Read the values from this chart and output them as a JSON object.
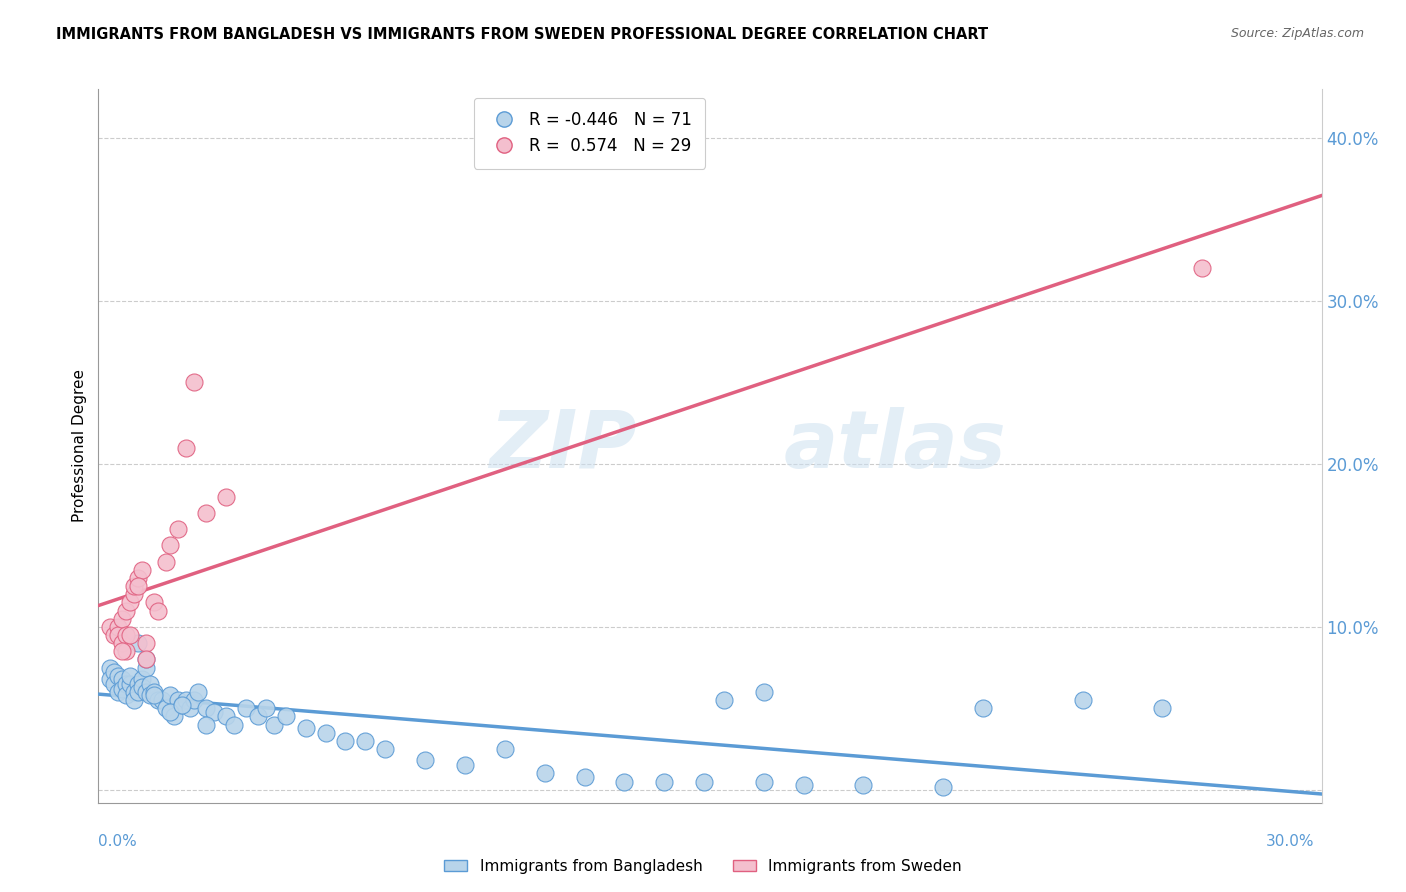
{
  "title": "IMMIGRANTS FROM BANGLADESH VS IMMIGRANTS FROM SWEDEN PROFESSIONAL DEGREE CORRELATION CHART",
  "source": "Source: ZipAtlas.com",
  "ylabel": "Professional Degree",
  "ytick_vals": [
    0.0,
    0.1,
    0.2,
    0.3,
    0.4
  ],
  "ytick_labels": [
    "",
    "10.0%",
    "20.0%",
    "30.0%",
    "40.0%"
  ],
  "xlim": [
    -0.002,
    0.305
  ],
  "ylim": [
    -0.008,
    0.43
  ],
  "color_bangladesh": "#b8d4ea",
  "color_sweden": "#f4bfce",
  "color_line_bangladesh": "#5b9bd5",
  "color_line_sweden": "#e06080",
  "color_axis_text": "#5b9bd5",
  "bangladesh_x": [
    0.001,
    0.001,
    0.002,
    0.002,
    0.003,
    0.003,
    0.004,
    0.004,
    0.005,
    0.005,
    0.006,
    0.006,
    0.007,
    0.007,
    0.008,
    0.008,
    0.009,
    0.009,
    0.01,
    0.01,
    0.011,
    0.011,
    0.012,
    0.013,
    0.014,
    0.015,
    0.016,
    0.017,
    0.018,
    0.019,
    0.02,
    0.021,
    0.022,
    0.023,
    0.025,
    0.027,
    0.03,
    0.032,
    0.035,
    0.038,
    0.04,
    0.042,
    0.045,
    0.05,
    0.055,
    0.06,
    0.065,
    0.07,
    0.08,
    0.09,
    0.1,
    0.11,
    0.12,
    0.13,
    0.14,
    0.15,
    0.165,
    0.175,
    0.19,
    0.21,
    0.155,
    0.165,
    0.22,
    0.245,
    0.265,
    0.008,
    0.01,
    0.012,
    0.016,
    0.019,
    0.025
  ],
  "bangladesh_y": [
    0.075,
    0.068,
    0.072,
    0.065,
    0.07,
    0.06,
    0.068,
    0.062,
    0.065,
    0.058,
    0.065,
    0.07,
    0.06,
    0.055,
    0.065,
    0.06,
    0.068,
    0.063,
    0.075,
    0.06,
    0.065,
    0.058,
    0.06,
    0.055,
    0.055,
    0.05,
    0.058,
    0.045,
    0.055,
    0.052,
    0.055,
    0.05,
    0.055,
    0.06,
    0.05,
    0.048,
    0.045,
    0.04,
    0.05,
    0.045,
    0.05,
    0.04,
    0.045,
    0.038,
    0.035,
    0.03,
    0.03,
    0.025,
    0.018,
    0.015,
    0.025,
    0.01,
    0.008,
    0.005,
    0.005,
    0.005,
    0.005,
    0.003,
    0.003,
    0.002,
    0.055,
    0.06,
    0.05,
    0.055,
    0.05,
    0.09,
    0.08,
    0.058,
    0.048,
    0.052,
    0.04
  ],
  "sweden_x": [
    0.001,
    0.002,
    0.003,
    0.003,
    0.004,
    0.004,
    0.005,
    0.005,
    0.006,
    0.007,
    0.007,
    0.008,
    0.009,
    0.01,
    0.012,
    0.013,
    0.015,
    0.016,
    0.018,
    0.02,
    0.022,
    0.025,
    0.03,
    0.275,
    0.01,
    0.005,
    0.006,
    0.004,
    0.008
  ],
  "sweden_y": [
    0.1,
    0.095,
    0.1,
    0.095,
    0.105,
    0.09,
    0.095,
    0.11,
    0.115,
    0.12,
    0.125,
    0.13,
    0.135,
    0.09,
    0.115,
    0.11,
    0.14,
    0.15,
    0.16,
    0.21,
    0.25,
    0.17,
    0.18,
    0.32,
    0.08,
    0.085,
    0.095,
    0.085,
    0.125
  ]
}
